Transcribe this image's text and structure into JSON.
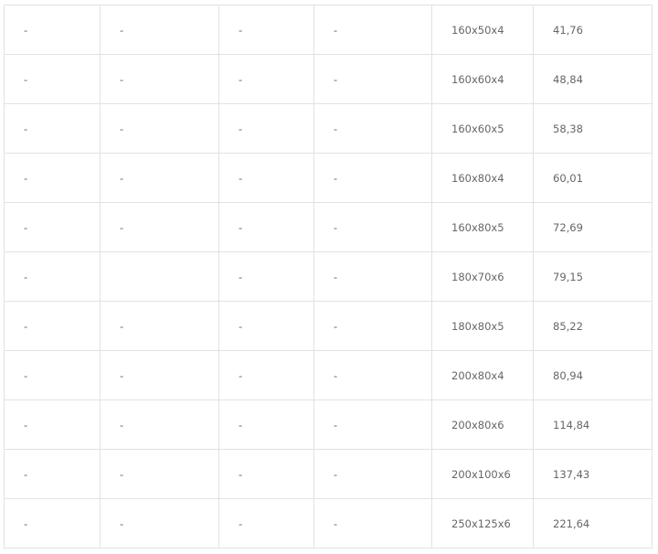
{
  "table": {
    "rows": [
      [
        "-",
        "-",
        "-",
        "-",
        "160x50x4",
        "41,76"
      ],
      [
        "-",
        "-",
        "-",
        "-",
        "160x60x4",
        "48,84"
      ],
      [
        "-",
        "-",
        "-",
        "-",
        "160x60x5",
        "58,38"
      ],
      [
        "-",
        "-",
        "-",
        "-",
        "160x80x4",
        "60,01"
      ],
      [
        "-",
        "-",
        "-",
        "-",
        "160x80x5",
        "72,69"
      ],
      [
        "-",
        "",
        "-",
        "-",
        "180x70x6",
        "79,15"
      ],
      [
        "-",
        "-",
        "-",
        "-",
        "180x80x5",
        "85,22"
      ],
      [
        "-",
        "-",
        "-",
        "-",
        "200x80x4",
        "80,94"
      ],
      [
        "-",
        "-",
        "-",
        "-",
        "200x80x6",
        "114,84"
      ],
      [
        "-",
        "-",
        "-",
        "-",
        "200x100x6",
        "137,43"
      ],
      [
        "-",
        "-",
        "-",
        "-",
        "250x125x6",
        "221,64"
      ]
    ]
  }
}
